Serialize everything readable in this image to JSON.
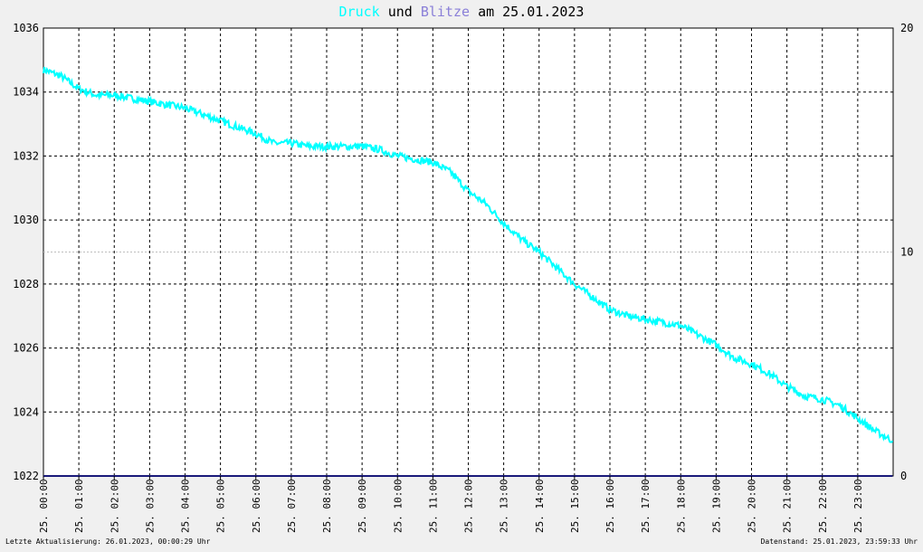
{
  "title": {
    "word1": "Druck",
    "word2": "und",
    "word3": "Blitze",
    "word4": "am 25.01.2023",
    "color1": "#00ffff",
    "color2": "#000000",
    "color3": "#8a7fd8",
    "color4": "#000000"
  },
  "footer": {
    "left": "Letzte Aktualisierung: 26.01.2023, 00:00:29 Uhr",
    "right": "Datenstand: 25.01.2023, 23:59:33 Uhr"
  },
  "colors": {
    "background": "#f0f0f0",
    "plot_area": "#ffffff",
    "pressure_line": "#00ffff",
    "lightning_line": "#1a1a7a",
    "grid": "#000000",
    "midline": "#bfbfbf"
  },
  "chart_data": {
    "type": "line",
    "title": "Druck und Blitze am 25.01.2023",
    "grid": true,
    "x_ticks": [
      "25. 00:00",
      "25. 01:00",
      "25. 02:00",
      "25. 03:00",
      "25. 04:00",
      "25. 05:00",
      "25. 06:00",
      "25. 07:00",
      "25. 08:00",
      "25. 09:00",
      "25. 10:00",
      "25. 11:00",
      "25. 12:00",
      "25. 13:00",
      "25. 14:00",
      "25. 15:00",
      "25. 16:00",
      "25. 17:00",
      "25. 18:00",
      "25. 19:00",
      "25. 20:00",
      "25. 21:00",
      "25. 22:00",
      "25. 23:00"
    ],
    "y_left": {
      "min": 1022,
      "max": 1036,
      "ticks": [
        1022,
        1024,
        1026,
        1028,
        1030,
        1032,
        1034,
        1036
      ]
    },
    "y_right": {
      "min": 0,
      "max": 20,
      "ticks": [
        0,
        10,
        20
      ]
    },
    "series": [
      {
        "name": "Druck",
        "axis": "left",
        "x": [
          "00:00",
          "00:30",
          "01:00",
          "01:30",
          "02:00",
          "02:30",
          "03:00",
          "03:30",
          "04:00",
          "04:30",
          "05:00",
          "05:30",
          "06:00",
          "06:30",
          "07:00",
          "07:30",
          "08:00",
          "08:30",
          "09:00",
          "09:30",
          "10:00",
          "10:30",
          "11:00",
          "11:30",
          "12:00",
          "12:30",
          "13:00",
          "13:30",
          "14:00",
          "14:30",
          "15:00",
          "15:30",
          "16:00",
          "16:30",
          "17:00",
          "17:30",
          "18:00",
          "18:30",
          "19:00",
          "19:30",
          "20:00",
          "20:30",
          "21:00",
          "21:30",
          "22:00",
          "22:30",
          "23:00",
          "23:30",
          "23:59"
        ],
        "values": [
          1034.7,
          1034.5,
          1034.1,
          1033.9,
          1033.9,
          1033.8,
          1033.7,
          1033.6,
          1033.5,
          1033.3,
          1033.1,
          1032.9,
          1032.7,
          1032.4,
          1032.4,
          1032.3,
          1032.3,
          1032.3,
          1032.3,
          1032.2,
          1032.0,
          1031.9,
          1031.8,
          1031.5,
          1030.9,
          1030.5,
          1029.9,
          1029.4,
          1029.0,
          1028.5,
          1028.0,
          1027.6,
          1027.2,
          1027.0,
          1026.9,
          1026.8,
          1026.7,
          1026.4,
          1026.1,
          1025.7,
          1025.5,
          1025.2,
          1024.8,
          1024.5,
          1024.4,
          1024.2,
          1023.8,
          1023.4,
          1023.1
        ]
      },
      {
        "name": "Blitze",
        "axis": "right",
        "x": [
          "00:00",
          "23:59"
        ],
        "values": [
          0,
          0
        ]
      }
    ]
  }
}
